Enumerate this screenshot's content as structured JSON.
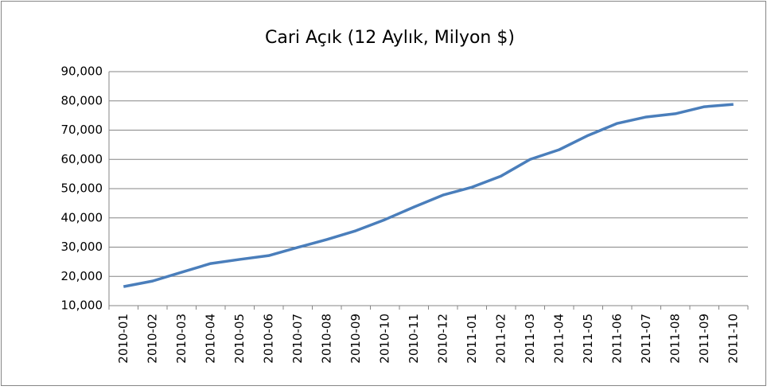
{
  "chart_data": {
    "type": "line",
    "title": "Cari Açık (12 Aylık, Milyon $)",
    "categories": [
      "2010-01",
      "2010-02",
      "2010-03",
      "2010-04",
      "2010-05",
      "2010-06",
      "2010-07",
      "2010-08",
      "2010-09",
      "2010-10",
      "2010-11",
      "2010-12",
      "2011-01",
      "2011-02",
      "2011-03",
      "2011-04",
      "2011-05",
      "2011-06",
      "2011-07",
      "2011-08",
      "2011-09",
      "2011-10"
    ],
    "series": [
      {
        "color": "#4a7ebb",
        "values": [
          16500,
          18400,
          21400,
          24400,
          25800,
          27100,
          29900,
          32600,
          35600,
          39400,
          43700,
          47800,
          50500,
          54300,
          60000,
          63300,
          68200,
          72300,
          74500,
          75600,
          78000,
          78800
        ]
      }
    ],
    "ylim": [
      10000,
      90000
    ],
    "yticks": [
      {
        "value": 10000,
        "label": "10,000"
      },
      {
        "value": 20000,
        "label": "20,000"
      },
      {
        "value": 30000,
        "label": "30,000"
      },
      {
        "value": 40000,
        "label": "40,000"
      },
      {
        "value": 50000,
        "label": "50,000"
      },
      {
        "value": 60000,
        "label": "60,000"
      },
      {
        "value": 70000,
        "label": "70,000"
      },
      {
        "value": 80000,
        "label": "80,000"
      },
      {
        "value": 90000,
        "label": "90,000"
      }
    ],
    "grid": true
  }
}
